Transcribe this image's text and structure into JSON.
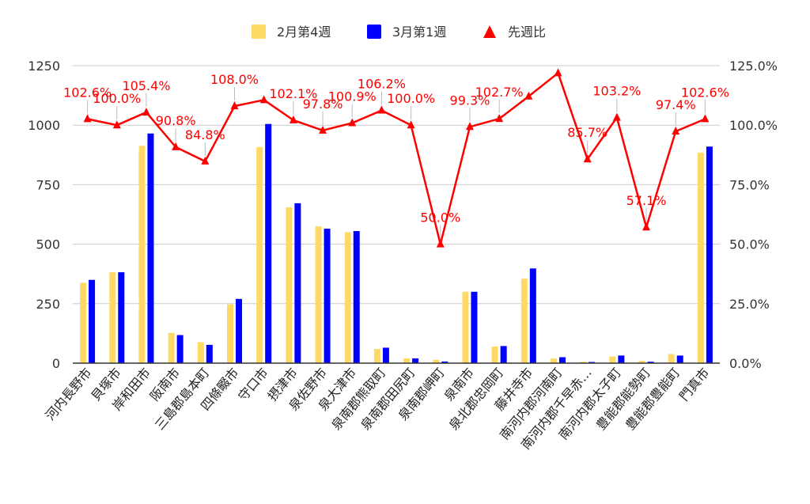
{
  "chart_data": {
    "type": "bar",
    "title": "",
    "xlabel": "",
    "ylabel": "",
    "y2label": "",
    "ylim": [
      0,
      1250
    ],
    "y2lim": [
      0,
      125
    ],
    "grid": true,
    "legend_position": "top",
    "y_ticks": [
      "0",
      "250",
      "500",
      "750",
      "1000",
      "1250"
    ],
    "y2_ticks": [
      "0.0%",
      "25.0%",
      "50.0%",
      "75.0%",
      "100.0%",
      "125.0%"
    ],
    "categories": [
      "河内長野市",
      "貝塚市",
      "岸和田市",
      "阪南市",
      "三島郡島本町",
      "四條畷市",
      "守口市",
      "摂津市",
      "泉佐野市",
      "泉大津市",
      "泉南郡熊取町",
      "泉南郡田尻町",
      "泉南郡岬町",
      "泉南市",
      "泉北郡忠岡町",
      "藤井寺市",
      "南河内郡河南町",
      "南河内郡千早赤…",
      "南河内郡太子町",
      "豊能郡能勢町",
      "豊能郡豊能町",
      "門真市"
    ],
    "series": [
      {
        "name": "2月第4週",
        "type": "bar",
        "color": "#ffd966",
        "values": [
          338,
          382,
          913,
          127,
          88,
          247,
          908,
          655,
          575,
          550,
          60,
          20,
          14,
          300,
          70,
          355,
          20,
          6,
          28,
          10,
          38,
          885
        ]
      },
      {
        "name": "3月第1週",
        "type": "bar",
        "color": "#0000ff",
        "values": [
          350,
          382,
          965,
          118,
          77,
          270,
          1005,
          672,
          565,
          555,
          65,
          20,
          7,
          300,
          72,
          398,
          25,
          5,
          32,
          6,
          32,
          910
        ]
      },
      {
        "name": "先週比",
        "type": "line",
        "axis": "right",
        "color": "#ff0000",
        "values": [
          102.6,
          100.0,
          105.4,
          90.8,
          84.8,
          108.0,
          110.6,
          102.1,
          97.8,
          100.9,
          106.2,
          100.0,
          50.0,
          99.3,
          102.7,
          112.1,
          121.9,
          85.7,
          103.2,
          57.1,
          97.4,
          102.6
        ],
        "labels": [
          "102.6%",
          "100.0%",
          "105.4%",
          "90.8%",
          "84.8%",
          "108.0%",
          "",
          "102.1%",
          "97.8%",
          "100.9%",
          "106.2%",
          "100.0%",
          "50.0%",
          "99.3%",
          "102.7%",
          "",
          "",
          "85.7%",
          "103.2%",
          "57.1%",
          "97.4%",
          "102.6%"
        ]
      }
    ]
  }
}
